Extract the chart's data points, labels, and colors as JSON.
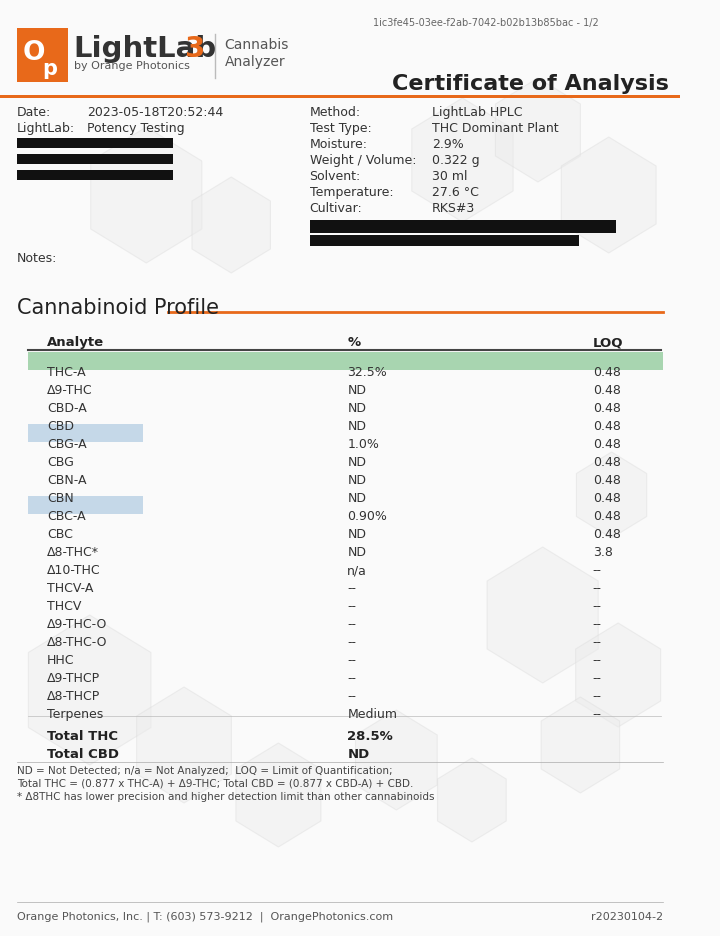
{
  "doc_id": "1ic3fe45-03ee-f2ab-7042-b02b13b85bac - 1/2",
  "title": "Certificate of Analysis",
  "logo_text_light": "LightLab",
  "logo_text_3": "3",
  "logo_sub": "by Orange Photonics",
  "logo_cannabis": "Cannabis",
  "logo_analyzer": "Analyzer",
  "header_fields_left": [
    [
      "Date:",
      "2023-05-18T20:52:44"
    ],
    [
      "LightLab:",
      "Potency Testing"
    ]
  ],
  "header_fields_right": [
    [
      "Method:",
      "LightLab HPLC"
    ],
    [
      "Test Type:",
      "THC Dominant Plant"
    ],
    [
      "Moisture:",
      "2.9%"
    ],
    [
      "Weight / Volume:",
      "0.322 g"
    ],
    [
      "Solvent:",
      "30 ml"
    ],
    [
      "Temperature:",
      "27.6 °C"
    ],
    [
      "Cultivar:",
      "RKS#3"
    ]
  ],
  "notes_label": "Notes:",
  "section_title": "Cannabinoid Profile",
  "table_headers": [
    "Analyte",
    "%",
    "LOQ"
  ],
  "table_rows": [
    {
      "analyte": "THC-A",
      "pct": "32.5%",
      "loq": "0.48",
      "highlight": "green"
    },
    {
      "analyte": "Δ9-THC",
      "pct": "ND",
      "loq": "0.48",
      "highlight": "none"
    },
    {
      "analyte": "CBD-A",
      "pct": "ND",
      "loq": "0.48",
      "highlight": "none"
    },
    {
      "analyte": "CBD",
      "pct": "ND",
      "loq": "0.48",
      "highlight": "none"
    },
    {
      "analyte": "CBG-A",
      "pct": "1.0%",
      "loq": "0.48",
      "highlight": "blue"
    },
    {
      "analyte": "CBG",
      "pct": "ND",
      "loq": "0.48",
      "highlight": "none"
    },
    {
      "analyte": "CBN-A",
      "pct": "ND",
      "loq": "0.48",
      "highlight": "none"
    },
    {
      "analyte": "CBN",
      "pct": "ND",
      "loq": "0.48",
      "highlight": "none"
    },
    {
      "analyte": "CBC-A",
      "pct": "0.90%",
      "loq": "0.48",
      "highlight": "blue"
    },
    {
      "analyte": "CBC",
      "pct": "ND",
      "loq": "0.48",
      "highlight": "none"
    },
    {
      "analyte": "Δ8-THC*",
      "pct": "ND",
      "loq": "3.8",
      "highlight": "none"
    },
    {
      "analyte": "Δ10-THC",
      "pct": "n/a",
      "loq": "--",
      "highlight": "none"
    },
    {
      "analyte": "THCV-A",
      "pct": "--",
      "loq": "--",
      "highlight": "none"
    },
    {
      "analyte": "THCV",
      "pct": "--",
      "loq": "--",
      "highlight": "none"
    },
    {
      "analyte": "Δ9-THC-O",
      "pct": "--",
      "loq": "--",
      "highlight": "none"
    },
    {
      "analyte": "Δ8-THC-O",
      "pct": "--",
      "loq": "--",
      "highlight": "none"
    },
    {
      "analyte": "HHC",
      "pct": "--",
      "loq": "--",
      "highlight": "none"
    },
    {
      "analyte": "Δ9-THCP",
      "pct": "--",
      "loq": "--",
      "highlight": "none"
    },
    {
      "analyte": "Δ8-THCP",
      "pct": "--",
      "loq": "--",
      "highlight": "none"
    },
    {
      "analyte": "Terpenes",
      "pct": "Medium",
      "loq": "--",
      "highlight": "none"
    }
  ],
  "totals": [
    {
      "label": "Total THC",
      "value": "28.5%"
    },
    {
      "label": "Total CBD",
      "value": "ND"
    }
  ],
  "footnotes": [
    "ND = Not Detected; n/a = Not Analyzed;  LOQ = Limit of Quantification;",
    "Total THC = (0.877 x THC-A) + Δ9-THC; Total CBD = (0.877 x CBD-A) + CBD.",
    "* Δ8THC has lower precision and higher detection limit than other cannabinoids"
  ],
  "footer_text": "Orange Photonics, Inc. | T: (603) 573-9212  |  OrangePhotonics.com",
  "footer_right": "r20230104-2",
  "orange_color": "#E8691A",
  "green_highlight": "#A8D5B0",
  "blue_highlight": "#C5D8E8",
  "bg_color": "#FAFAFA",
  "text_color": "#222222",
  "light_text": "#555555"
}
